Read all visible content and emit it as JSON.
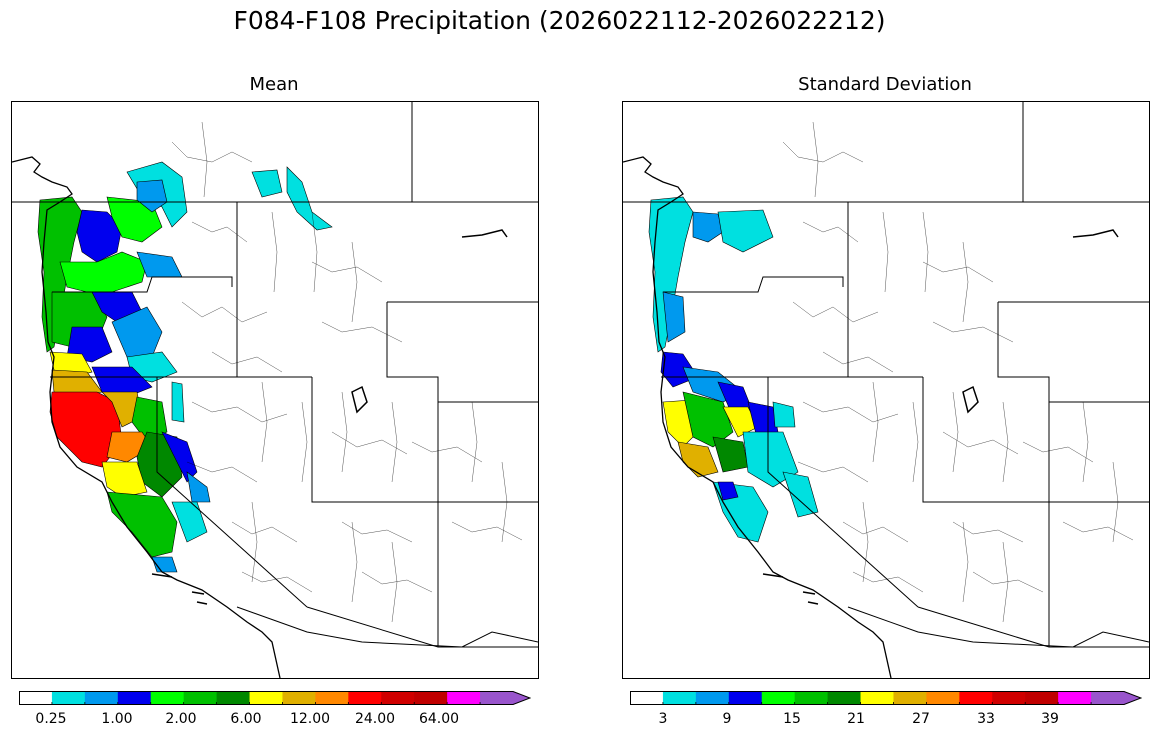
{
  "figure": {
    "title": "F084-F108 Precipitation (2026022112-2026022212)"
  },
  "panels": [
    {
      "title": "Mean",
      "colorbar": {
        "colors": [
          "#ffffff",
          "#00e0e0",
          "#0099ee",
          "#0000ee",
          "#00ff00",
          "#00c000",
          "#008800",
          "#ffff00",
          "#e0b000",
          "#ff8800",
          "#ff0000",
          "#d00000",
          "#c00000",
          "#ff00ff",
          "#9955cc"
        ],
        "tick_labels": [
          "0.25",
          "1.00",
          "2.00",
          "6.00",
          "12.00",
          "24.00",
          "64.00"
        ],
        "extend": "max"
      }
    },
    {
      "title": "Standard Deviation",
      "colorbar": {
        "colors": [
          "#ffffff",
          "#00e0e0",
          "#0099ee",
          "#0000ee",
          "#00ff00",
          "#00c000",
          "#008800",
          "#ffff00",
          "#e0b000",
          "#ff8800",
          "#ff0000",
          "#d00000",
          "#c00000",
          "#ff00ff",
          "#9955cc"
        ],
        "tick_labels": [
          "3",
          "9",
          "15",
          "21",
          "27",
          "33",
          "39"
        ],
        "extend": "max"
      }
    }
  ]
}
